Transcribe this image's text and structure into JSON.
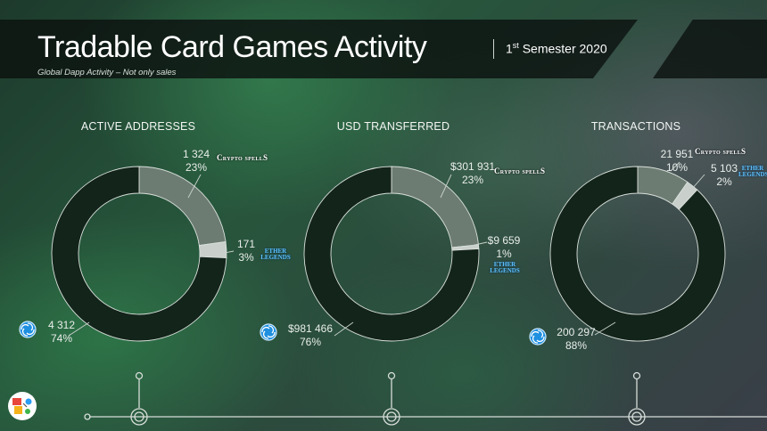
{
  "header": {
    "title": "Tradable Card Games Activity",
    "subtitle": "Global Dapp Activity – Not only sales",
    "period_ordinal": "1",
    "period_suffix": "st",
    "period_label": "Semester 2020"
  },
  "brands": {
    "cryptospells": "Crypto spellS",
    "ether_legends_top": "ETHER",
    "ether_legends_bottom": "LEGENDS",
    "icons": [
      "swirl-token-icon",
      "ether-legends-logo",
      "cryptospells-logo",
      "corner-logo-icon"
    ]
  },
  "colors": {
    "dominant": "#13241b",
    "cryptospells": "#6c7c73",
    "ether_legends": "#c9d0cb",
    "ring_edge": "#d9e0db"
  },
  "chart_data": [
    {
      "type": "pie",
      "title": "ACTIVE ADDRESSES",
      "slices": [
        {
          "name": "Gods Unchained",
          "value": 4312,
          "value_label": "4 312",
          "percent_label": "74%"
        },
        {
          "name": "CryptoSpells",
          "value": 1324,
          "value_label": "1 324",
          "percent_label": "23%"
        },
        {
          "name": "Ether Legends",
          "value": 171,
          "value_label": "171",
          "percent_label": "3%"
        }
      ]
    },
    {
      "type": "pie",
      "title": "USD TRANSFERRED",
      "slices": [
        {
          "name": "Gods Unchained",
          "value": 981466,
          "value_label": "$981 466",
          "percent_label": "76%"
        },
        {
          "name": "CryptoSpells",
          "value": 301931,
          "value_label": "$301 931",
          "percent_label": "23%"
        },
        {
          "name": "Ether Legends",
          "value": 9659,
          "value_label": "$9 659",
          "percent_label": "1%"
        }
      ]
    },
    {
      "type": "pie",
      "title": "TRANSACTIONS",
      "slices": [
        {
          "name": "Gods Unchained",
          "value": 200297,
          "value_label": "200 297",
          "percent_label": "88%"
        },
        {
          "name": "CryptoSpells",
          "value": 21951,
          "value_label": "21 951",
          "percent_label": "10%"
        },
        {
          "name": "Ether Legends",
          "value": 5103,
          "value_label": "5 103",
          "percent_label": "2%"
        }
      ]
    }
  ]
}
